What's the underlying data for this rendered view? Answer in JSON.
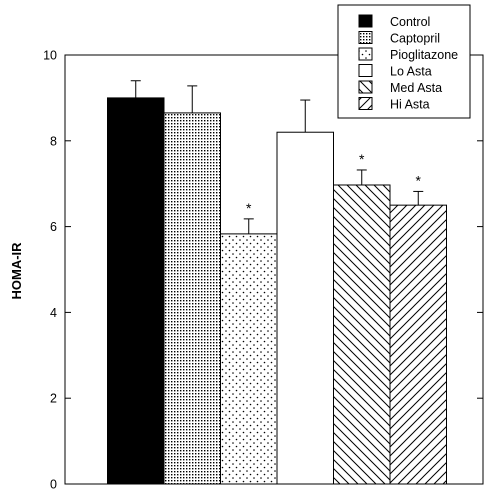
{
  "chart_data": {
    "type": "bar",
    "title": "",
    "xlabel": "",
    "ylabel": "HOMA-IR",
    "ylim": [
      0,
      10
    ],
    "yticks": [
      0,
      2,
      4,
      6,
      8,
      10
    ],
    "grid": false,
    "legend_position": "top-right",
    "categories": [
      "Control",
      "Captopril",
      "Pioglitazone",
      "Lo Asta",
      "Med Asta",
      "Hi Asta"
    ],
    "values": [
      9.0,
      8.65,
      5.83,
      8.2,
      6.97,
      6.5
    ],
    "errors": [
      0.4,
      0.63,
      0.35,
      0.75,
      0.35,
      0.32
    ],
    "significant": [
      false,
      false,
      true,
      false,
      true,
      true
    ],
    "significance_marker": "*",
    "fills": [
      "solid-black",
      "dense-dots",
      "sparse-dots",
      "white",
      "diagonal-down",
      "diagonal-up"
    ],
    "colors": {
      "ink": "#000000",
      "background": "#ffffff"
    }
  }
}
